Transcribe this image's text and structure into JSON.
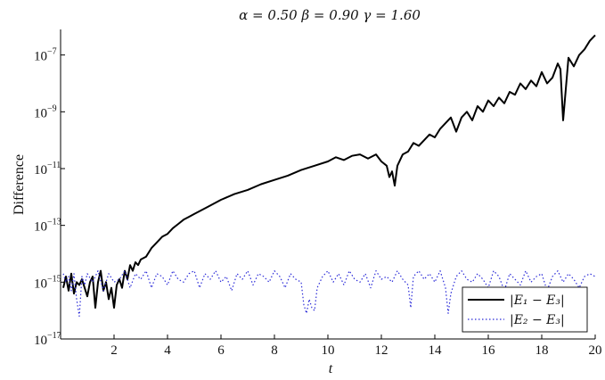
{
  "chart_data": {
    "type": "line",
    "title": "α = 0.50    β = 0.90    γ = 1.60",
    "xlabel": "t",
    "ylabel": "Difference",
    "xlim": [
      0,
      20
    ],
    "ylim_log10": [
      -17,
      -6.1
    ],
    "yscale": "log",
    "x_ticks": [
      2,
      4,
      6,
      8,
      10,
      12,
      14,
      16,
      18,
      20
    ],
    "y_ticks": [
      {
        "base": "10",
        "exp": "−7",
        "value": -7
      },
      {
        "base": "10",
        "exp": "−9",
        "value": -9
      },
      {
        "base": "10",
        "exp": "−11",
        "value": -11
      },
      {
        "base": "10",
        "exp": "−13",
        "value": -13
      },
      {
        "base": "10",
        "exp": "−15",
        "value": -15
      },
      {
        "base": "10",
        "exp": "−17",
        "value": -17
      }
    ],
    "grid": false,
    "legend_position": "bottom-right",
    "series": [
      {
        "name": "|E1 − E3|",
        "legend_label": "|E₁ − E₃|",
        "style": "solid",
        "color": "#000000",
        "x": [
          0.1,
          0.2,
          0.3,
          0.4,
          0.5,
          0.6,
          0.7,
          0.8,
          0.9,
          1.0,
          1.1,
          1.2,
          1.3,
          1.4,
          1.5,
          1.6,
          1.7,
          1.8,
          1.9,
          2.0,
          2.1,
          2.2,
          2.3,
          2.4,
          2.5,
          2.6,
          2.7,
          2.8,
          2.9,
          3.0,
          3.2,
          3.4,
          3.6,
          3.8,
          4.0,
          4.2,
          4.4,
          4.6,
          4.8,
          5.0,
          5.5,
          6.0,
          6.5,
          7.0,
          7.5,
          8.0,
          8.5,
          9.0,
          9.5,
          10.0,
          10.3,
          10.6,
          10.9,
          11.2,
          11.5,
          11.8,
          12.0,
          12.2,
          12.3,
          12.4,
          12.5,
          12.6,
          12.7,
          12.8,
          13.0,
          13.2,
          13.4,
          13.6,
          13.8,
          14.0,
          14.2,
          14.4,
          14.6,
          14.8,
          15.0,
          15.2,
          15.4,
          15.6,
          15.8,
          16.0,
          16.2,
          16.4,
          16.6,
          16.8,
          17.0,
          17.2,
          17.4,
          17.6,
          17.8,
          18.0,
          18.2,
          18.4,
          18.6,
          18.7,
          18.8,
          19.0,
          19.2,
          19.4,
          19.6,
          19.8,
          20.0
        ],
        "y_log10": [
          -15.2,
          -14.8,
          -15.3,
          -14.7,
          -15.4,
          -15.0,
          -15.1,
          -14.9,
          -15.2,
          -15.5,
          -15.0,
          -14.8,
          -15.9,
          -15.0,
          -14.6,
          -15.3,
          -15.0,
          -15.6,
          -15.2,
          -15.9,
          -15.1,
          -14.9,
          -15.2,
          -14.6,
          -14.9,
          -14.4,
          -14.6,
          -14.3,
          -14.4,
          -14.2,
          -14.1,
          -13.8,
          -13.6,
          -13.4,
          -13.3,
          -13.1,
          -12.95,
          -12.8,
          -12.7,
          -12.6,
          -12.35,
          -12.1,
          -11.9,
          -11.75,
          -11.55,
          -11.4,
          -11.25,
          -11.05,
          -10.9,
          -10.75,
          -10.6,
          -10.7,
          -10.55,
          -10.5,
          -10.65,
          -10.5,
          -10.75,
          -10.9,
          -11.3,
          -11.1,
          -11.6,
          -10.9,
          -10.7,
          -10.5,
          -10.4,
          -10.1,
          -10.2,
          -10.0,
          -9.8,
          -9.9,
          -9.6,
          -9.4,
          -9.2,
          -9.7,
          -9.2,
          -9.0,
          -9.3,
          -8.8,
          -9.0,
          -8.6,
          -8.8,
          -8.5,
          -8.7,
          -8.3,
          -8.4,
          -8.0,
          -8.2,
          -7.9,
          -8.1,
          -7.6,
          -8.0,
          -7.8,
          -7.3,
          -7.5,
          -9.3,
          -7.1,
          -7.4,
          -7.0,
          -6.8,
          -6.5,
          -6.3
        ]
      },
      {
        "name": "|E2 − E3|",
        "legend_label": "|E₂ − E₃|",
        "style": "dotted",
        "color": "#2b2bd8",
        "x": [
          0.1,
          0.2,
          0.3,
          0.4,
          0.5,
          0.6,
          0.7,
          0.8,
          0.9,
          1.0,
          1.2,
          1.4,
          1.6,
          1.8,
          2.0,
          2.2,
          2.4,
          2.6,
          2.8,
          3.0,
          3.2,
          3.4,
          3.6,
          3.8,
          4.0,
          4.2,
          4.4,
          4.6,
          4.8,
          5.0,
          5.2,
          5.4,
          5.6,
          5.8,
          6.0,
          6.2,
          6.4,
          6.6,
          6.8,
          7.0,
          7.2,
          7.4,
          7.6,
          7.8,
          8.0,
          8.2,
          8.4,
          8.6,
          8.8,
          9.0,
          9.1,
          9.2,
          9.3,
          9.4,
          9.5,
          9.6,
          9.8,
          10.0,
          10.2,
          10.4,
          10.6,
          10.8,
          11.0,
          11.2,
          11.4,
          11.6,
          11.8,
          12.0,
          12.2,
          12.4,
          12.6,
          12.8,
          13.0,
          13.1,
          13.2,
          13.4,
          13.6,
          13.8,
          14.0,
          14.2,
          14.4,
          14.5,
          14.6,
          14.8,
          15.0,
          15.2,
          15.4,
          15.6,
          15.8,
          16.0,
          16.2,
          16.4,
          16.6,
          16.8,
          17.0,
          17.2,
          17.4,
          17.6,
          17.8,
          18.0,
          18.2,
          18.4,
          18.6,
          18.8,
          19.0,
          19.2,
          19.4,
          19.6,
          19.8,
          20.0
        ],
        "y_log10": [
          -14.7,
          -15.0,
          -14.8,
          -15.3,
          -14.7,
          -15.6,
          -16.2,
          -14.8,
          -15.1,
          -14.7,
          -15.0,
          -14.6,
          -15.3,
          -14.7,
          -15.0,
          -14.9,
          -14.6,
          -15.2,
          -14.7,
          -14.9,
          -14.6,
          -15.2,
          -14.7,
          -14.8,
          -15.1,
          -14.6,
          -14.9,
          -15.0,
          -14.7,
          -14.6,
          -15.2,
          -14.7,
          -14.9,
          -14.6,
          -15.0,
          -14.8,
          -15.3,
          -14.7,
          -14.9,
          -14.6,
          -15.1,
          -14.7,
          -14.8,
          -15.0,
          -14.6,
          -14.8,
          -15.2,
          -14.7,
          -14.9,
          -15.0,
          -15.8,
          -16.1,
          -15.6,
          -15.9,
          -16.0,
          -15.2,
          -14.8,
          -14.6,
          -15.0,
          -14.7,
          -15.1,
          -14.6,
          -14.9,
          -15.0,
          -14.7,
          -15.2,
          -14.6,
          -14.9,
          -14.8,
          -15.0,
          -14.6,
          -14.9,
          -15.1,
          -15.9,
          -14.8,
          -14.6,
          -14.9,
          -14.7,
          -15.0,
          -14.6,
          -15.2,
          -16.1,
          -15.4,
          -14.8,
          -14.6,
          -14.9,
          -15.0,
          -14.7,
          -14.9,
          -15.2,
          -14.6,
          -14.8,
          -15.3,
          -14.7,
          -14.9,
          -15.1,
          -14.6,
          -15.0,
          -14.8,
          -14.7,
          -15.3,
          -14.8,
          -14.6,
          -15.0,
          -14.7,
          -14.9,
          -15.2,
          -14.8,
          -14.7,
          -14.8
        ]
      }
    ]
  }
}
